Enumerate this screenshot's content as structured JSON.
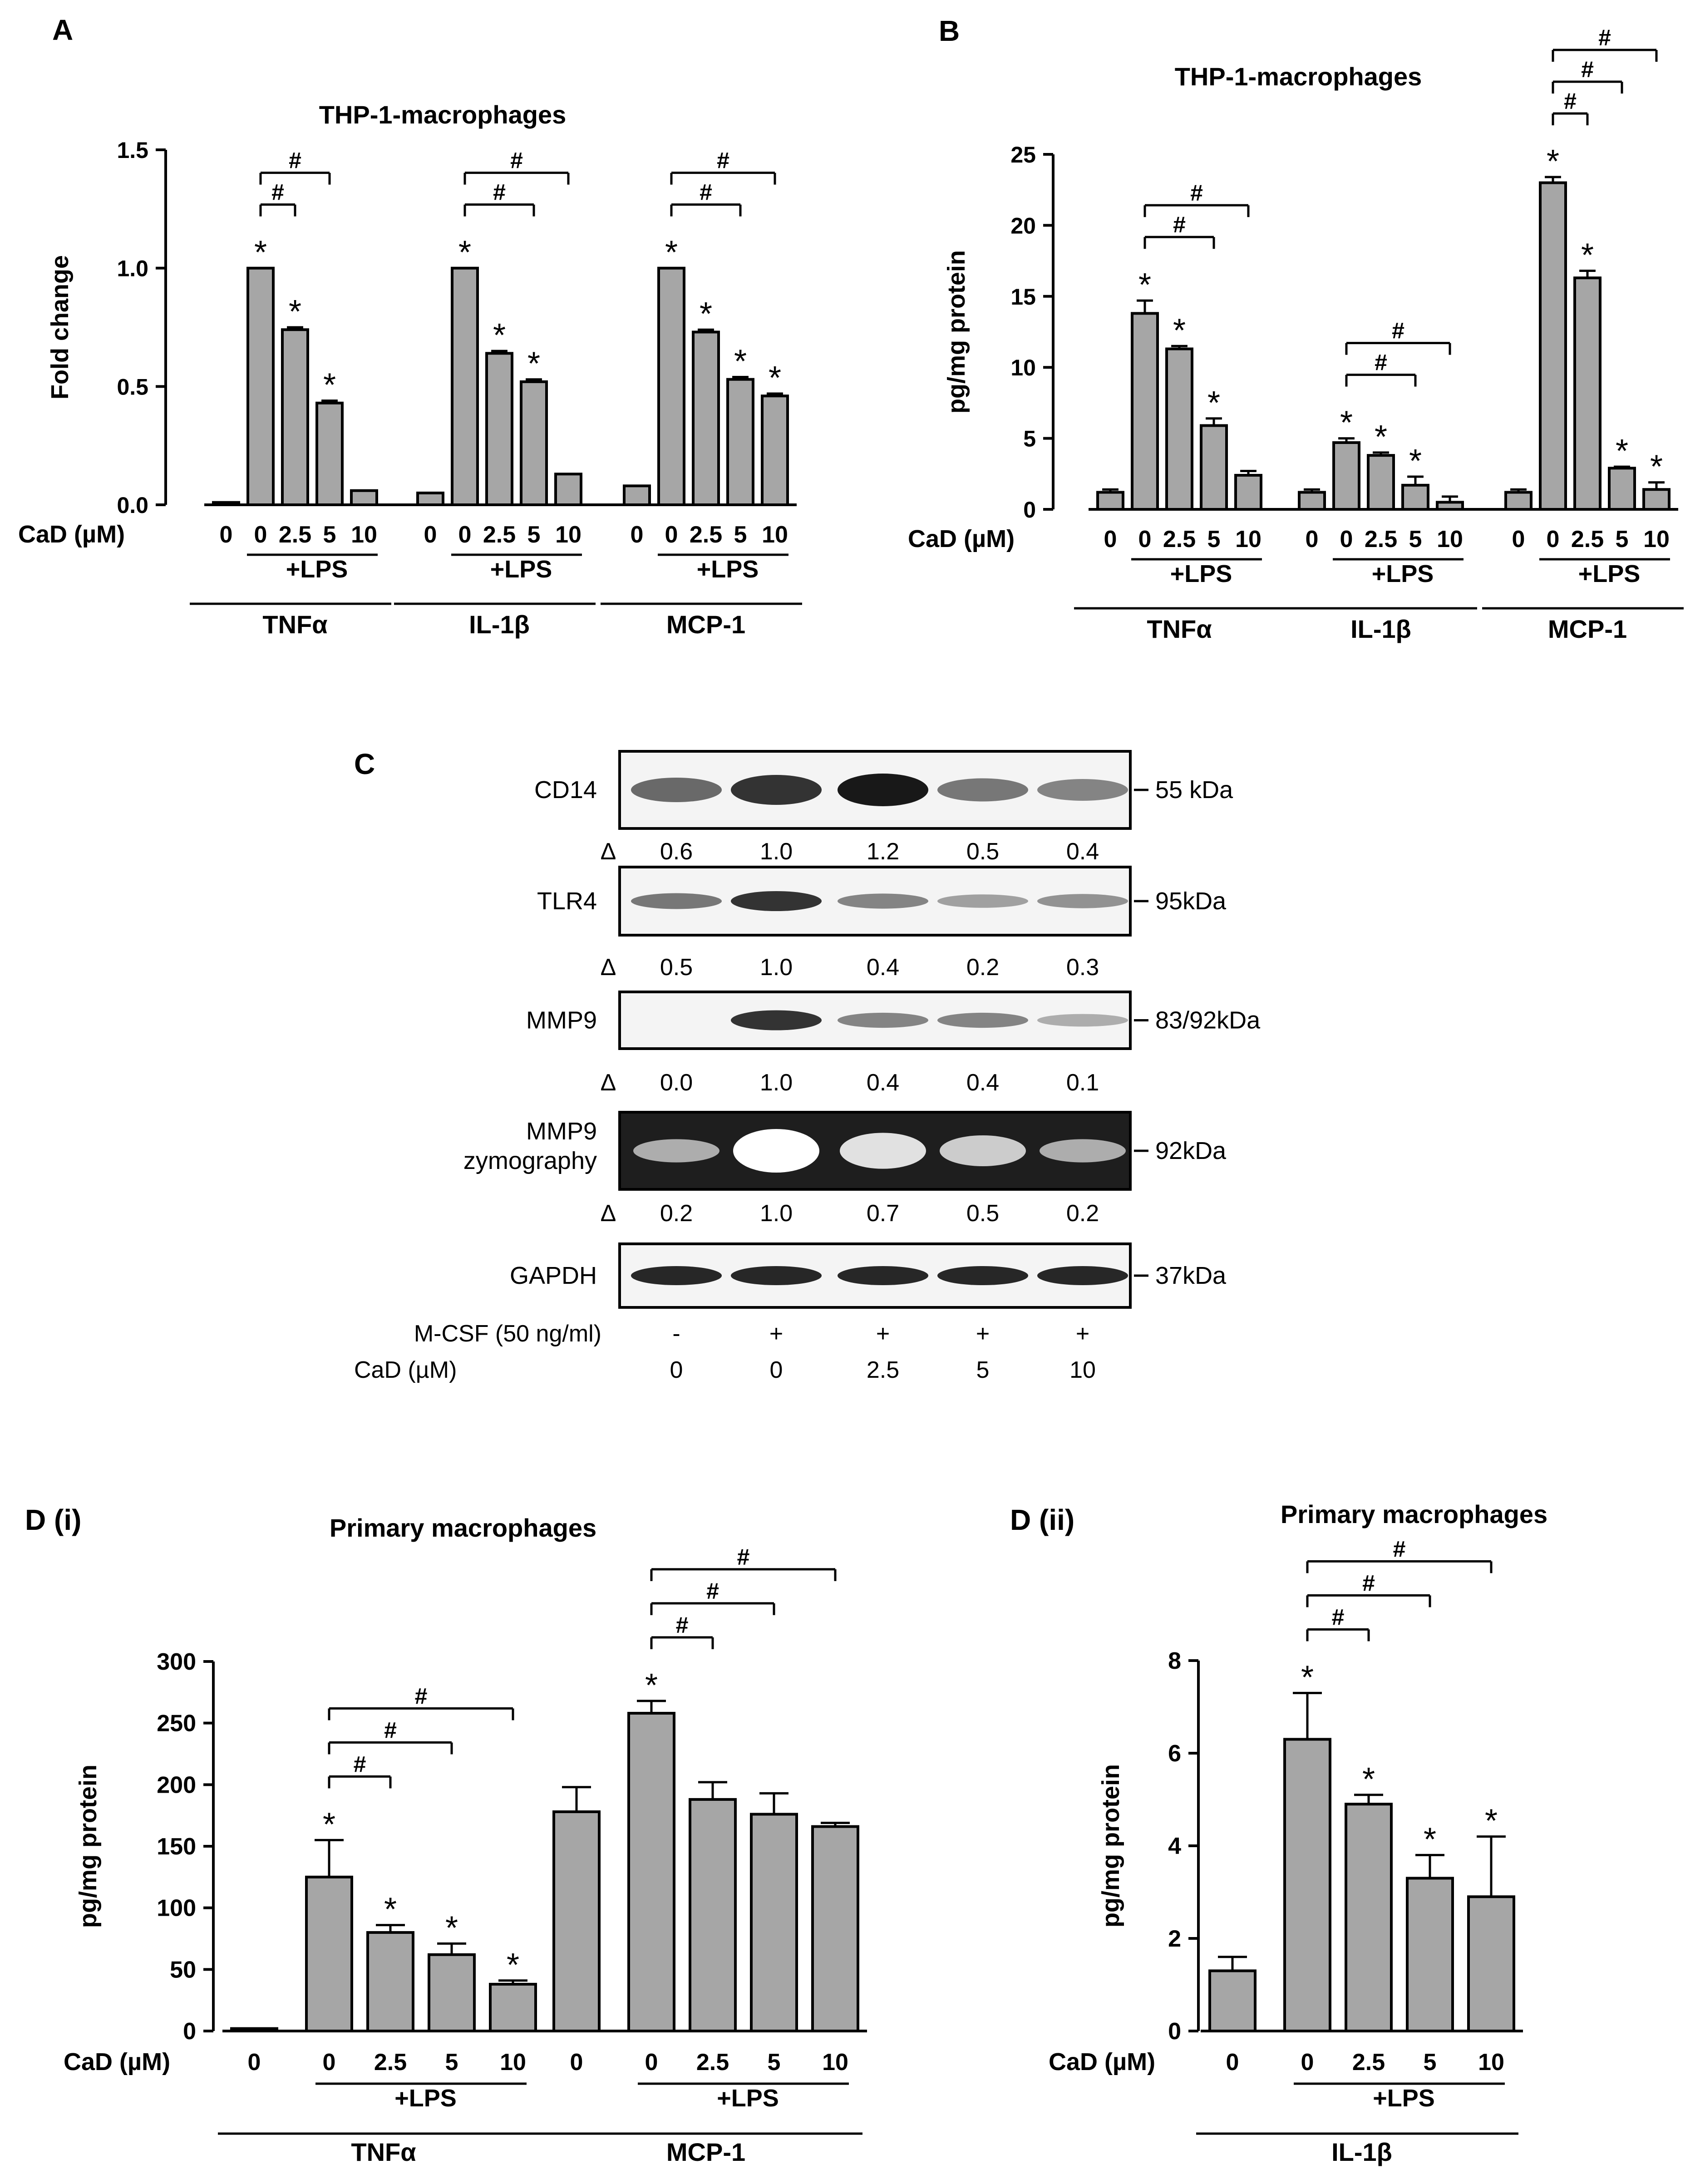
{
  "colors": {
    "bar": "#a6a6a6",
    "ink": "#000000",
    "blot_bg": "#f4f4f4",
    "zymo_bg": "#1e1e1e"
  },
  "common": {
    "cad_label": "CaD (µM)",
    "lps": "+LPS",
    "star": "*",
    "hash": "#",
    "conc": [
      "0",
      "0",
      "2.5",
      "5",
      "10"
    ]
  },
  "chart_data": [
    {
      "id": "A",
      "panel_label": "A",
      "type": "bar",
      "title": "THP-1-macrophages",
      "ylabel": "Fold change",
      "ylim": [
        0,
        1.5
      ],
      "yticks": [
        "0.0",
        "0.5",
        "1.0",
        "1.5"
      ],
      "ytick_values": [
        0,
        0.5,
        1.0,
        1.5
      ],
      "categories": [
        "0",
        "0",
        "2.5",
        "5",
        "10"
      ],
      "series": [
        {
          "name": "TNFα",
          "values": [
            0.01,
            1.0,
            0.74,
            0.43,
            0.06
          ],
          "err": [
            0,
            0,
            0.01,
            0.01,
            0
          ],
          "stars": [
            false,
            true,
            true,
            true,
            false
          ],
          "hash_targets": [
            2,
            3
          ]
        },
        {
          "name": "IL-1β",
          "values": [
            0.05,
            1.0,
            0.64,
            0.52,
            0.13
          ],
          "err": [
            0,
            0,
            0.01,
            0.01,
            0
          ],
          "stars": [
            false,
            true,
            true,
            true,
            false
          ],
          "hash_targets": [
            3,
            4
          ]
        },
        {
          "name": "MCP-1",
          "values": [
            0.08,
            1.0,
            0.73,
            0.53,
            0.46
          ],
          "err": [
            0,
            0,
            0.01,
            0.01,
            0.01
          ],
          "stars": [
            false,
            true,
            true,
            true,
            true
          ],
          "hash_targets": [
            3,
            4
          ]
        }
      ]
    },
    {
      "id": "B",
      "panel_label": "B",
      "type": "bar",
      "title": "THP-1-macrophages",
      "ylabel": "pg/mg  protein",
      "ylim": [
        0,
        25
      ],
      "yticks": [
        "0",
        "5",
        "10",
        "15",
        "20",
        "25"
      ],
      "ytick_values": [
        0,
        5,
        10,
        15,
        20,
        25
      ],
      "categories": [
        "0",
        "0",
        "2.5",
        "5",
        "10"
      ],
      "series": [
        {
          "name": "TNFα",
          "values": [
            1.2,
            13.8,
            11.3,
            5.9,
            2.4
          ],
          "err": [
            0.2,
            0.9,
            0.2,
            0.5,
            0.3
          ],
          "stars": [
            false,
            true,
            true,
            true,
            false
          ],
          "hash_targets": [
            3,
            4
          ]
        },
        {
          "name": "IL-1β",
          "values": [
            1.2,
            4.7,
            3.8,
            1.7,
            0.5
          ],
          "err": [
            0.2,
            0.3,
            0.2,
            0.6,
            0.4
          ],
          "stars": [
            false,
            true,
            true,
            true,
            false
          ],
          "hash_targets": [
            3,
            4
          ]
        },
        {
          "name": "MCP-1",
          "values": [
            1.2,
            23.0,
            16.3,
            2.9,
            1.4
          ],
          "err": [
            0.2,
            0.4,
            0.5,
            0.1,
            0.5
          ],
          "stars": [
            false,
            true,
            true,
            true,
            true
          ],
          "hash_targets": [
            2,
            3,
            4
          ]
        }
      ]
    },
    {
      "id": "Di",
      "panel_label": "D (i)",
      "type": "bar",
      "title": "Primary macrophages",
      "ylabel": "pg/mg  protein",
      "ylim": [
        0,
        300
      ],
      "yticks": [
        "0",
        "50",
        "100",
        "150",
        "200",
        "250",
        "300"
      ],
      "ytick_values": [
        0,
        50,
        100,
        150,
        200,
        250,
        300
      ],
      "categories": [
        "0",
        "0",
        "2.5",
        "5",
        "10"
      ],
      "series": [
        {
          "name": "TNFα",
          "values": [
            2,
            125,
            80,
            62,
            38
          ],
          "err": [
            0,
            30,
            6,
            9,
            3
          ],
          "stars": [
            false,
            true,
            true,
            true,
            true
          ],
          "hash_targets": [
            2,
            3,
            4
          ]
        },
        {
          "name": "MCP-1",
          "values": [
            178,
            258,
            188,
            176,
            166
          ],
          "err": [
            20,
            10,
            14,
            17,
            3
          ],
          "stars": [
            false,
            true,
            false,
            false,
            false
          ],
          "hash_targets": [
            2,
            3,
            4
          ]
        }
      ]
    },
    {
      "id": "Dii",
      "panel_label": "D (ii)",
      "type": "bar",
      "title": "Primary macrophages",
      "ylabel": "pg/mg  protein",
      "ylim": [
        0,
        8
      ],
      "yticks": [
        "0",
        "2",
        "4",
        "6",
        "8"
      ],
      "ytick_values": [
        0,
        2,
        4,
        6,
        8
      ],
      "categories": [
        "0",
        "0",
        "2.5",
        "5",
        "10"
      ],
      "series": [
        {
          "name": "IL-1β",
          "values": [
            1.3,
            6.3,
            4.9,
            3.3,
            2.9
          ],
          "err": [
            0.3,
            1.0,
            0.2,
            0.5,
            1.3
          ],
          "stars": [
            false,
            true,
            true,
            true,
            true
          ],
          "hash_targets": [
            2,
            3,
            4
          ]
        }
      ]
    }
  ],
  "blot": {
    "panel_label": "C",
    "rows": [
      {
        "label": "CD14",
        "size": "55 kDa",
        "quant": [
          "0.6",
          "1.0",
          "1.2",
          "0.5",
          "0.4"
        ],
        "intensity": [
          0.6,
          1.0,
          1.2,
          0.5,
          0.4
        ]
      },
      {
        "label": "TLR4",
        "size": "95kDa",
        "quant": [
          "0.5",
          "1.0",
          "0.4",
          "0.2",
          "0.3"
        ],
        "intensity": [
          0.5,
          1.0,
          0.4,
          0.2,
          0.3
        ]
      },
      {
        "label": "MMP9",
        "size": "83/92kDa",
        "quant": [
          "0.0",
          "1.0",
          "0.4",
          "0.4",
          "0.1"
        ],
        "intensity": [
          0.0,
          1.0,
          0.4,
          0.4,
          0.1
        ]
      },
      {
        "label": "MMP9 zymography",
        "label_lines": [
          "MMP9",
          "zymography"
        ],
        "size": "92kDa",
        "quant": [
          "0.2",
          "1.0",
          "0.7",
          "0.5",
          "0.2"
        ],
        "intensity": [
          0.2,
          1.0,
          0.7,
          0.5,
          0.2
        ]
      },
      {
        "label": "GAPDH",
        "size": "37kDa",
        "intensity": [
          1,
          1,
          1,
          1,
          1
        ]
      }
    ],
    "delta": "Δ",
    "mcsf_label": "M-CSF (50 ng/ml)",
    "mcsf": [
      "-",
      "+",
      "+",
      "+",
      "+"
    ],
    "cad_label": "CaD (µM)",
    "cad": [
      "0",
      "0",
      "2.5",
      "5",
      "10"
    ]
  }
}
